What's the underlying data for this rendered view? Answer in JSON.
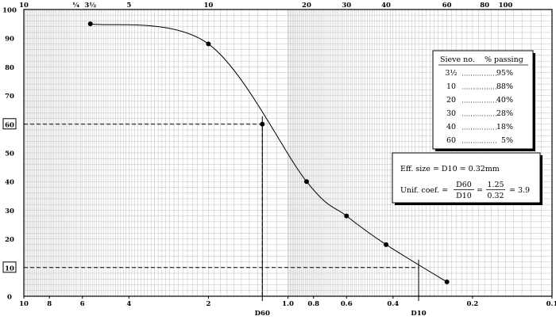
{
  "chart_data": {
    "type": "line",
    "x_scale": "log",
    "x_reversed": true,
    "xlim": [
      10,
      0.1
    ],
    "ylim": [
      0,
      100
    ],
    "grid": true,
    "x_ticks": [
      "10",
      "8",
      "6",
      "4",
      "2",
      "1.0",
      "0.8",
      "0.6",
      "0.4",
      "0.2",
      "0.1"
    ],
    "x_tick_values": [
      10,
      8,
      6,
      4,
      2,
      1.0,
      0.8,
      0.6,
      0.4,
      0.2,
      0.1
    ],
    "y_ticks": [
      "0",
      "10",
      "20",
      "30",
      "40",
      "50",
      "60",
      "70",
      "80",
      "90",
      "100"
    ],
    "y_tick_values": [
      0,
      10,
      20,
      30,
      40,
      50,
      60,
      70,
      80,
      90,
      100
    ],
    "y_ticks_boxed": [
      "10",
      "60"
    ],
    "top_ticks": [
      {
        "label": "10",
        "value": 10.0
      },
      {
        "label": "¼",
        "value": 6.35
      },
      {
        "label": "3½",
        "value": 5.6
      },
      {
        "label": "5",
        "value": 4.0
      },
      {
        "label": "10",
        "value": 2.0
      },
      {
        "label": "20",
        "value": 0.85
      },
      {
        "label": "30",
        "value": 0.6
      },
      {
        "label": "40",
        "value": 0.425
      },
      {
        "label": "60",
        "value": 0.25
      },
      {
        "label": "80",
        "value": 0.18
      },
      {
        "label": "100",
        "value": 0.15
      }
    ],
    "series": [
      {
        "x": [
          5.6,
          2.0,
          0.85,
          0.6,
          0.425,
          0.25
        ],
        "y": [
          95,
          88,
          40,
          28,
          18,
          5
        ]
      }
    ],
    "d60": {
      "label": "D60",
      "x": 1.25,
      "y": 60
    },
    "d10": {
      "label": "D10",
      "x": 0.32,
      "y": 10
    },
    "sieve_table": {
      "header_col1": "Sieve no.",
      "header_col2": "% passing",
      "rows": [
        {
          "sieve": "3½",
          "passing": "95%"
        },
        {
          "sieve": "10",
          "passing": "88%"
        },
        {
          "sieve": "20",
          "passing": "40%"
        },
        {
          "sieve": "30",
          "passing": "28%"
        },
        {
          "sieve": "40",
          "passing": "18%"
        },
        {
          "sieve": "60",
          "passing": "5%"
        }
      ]
    },
    "coef_box": {
      "eff_size": "Eff. size = D10 = 0.32mm",
      "unif_prefix": "Unif. coef. =",
      "frac1_num": "D60",
      "frac1_den": "D10",
      "eq": "=",
      "frac2_num": "1.25",
      "frac2_den": "0.32",
      "result": "= 3.9"
    }
  }
}
